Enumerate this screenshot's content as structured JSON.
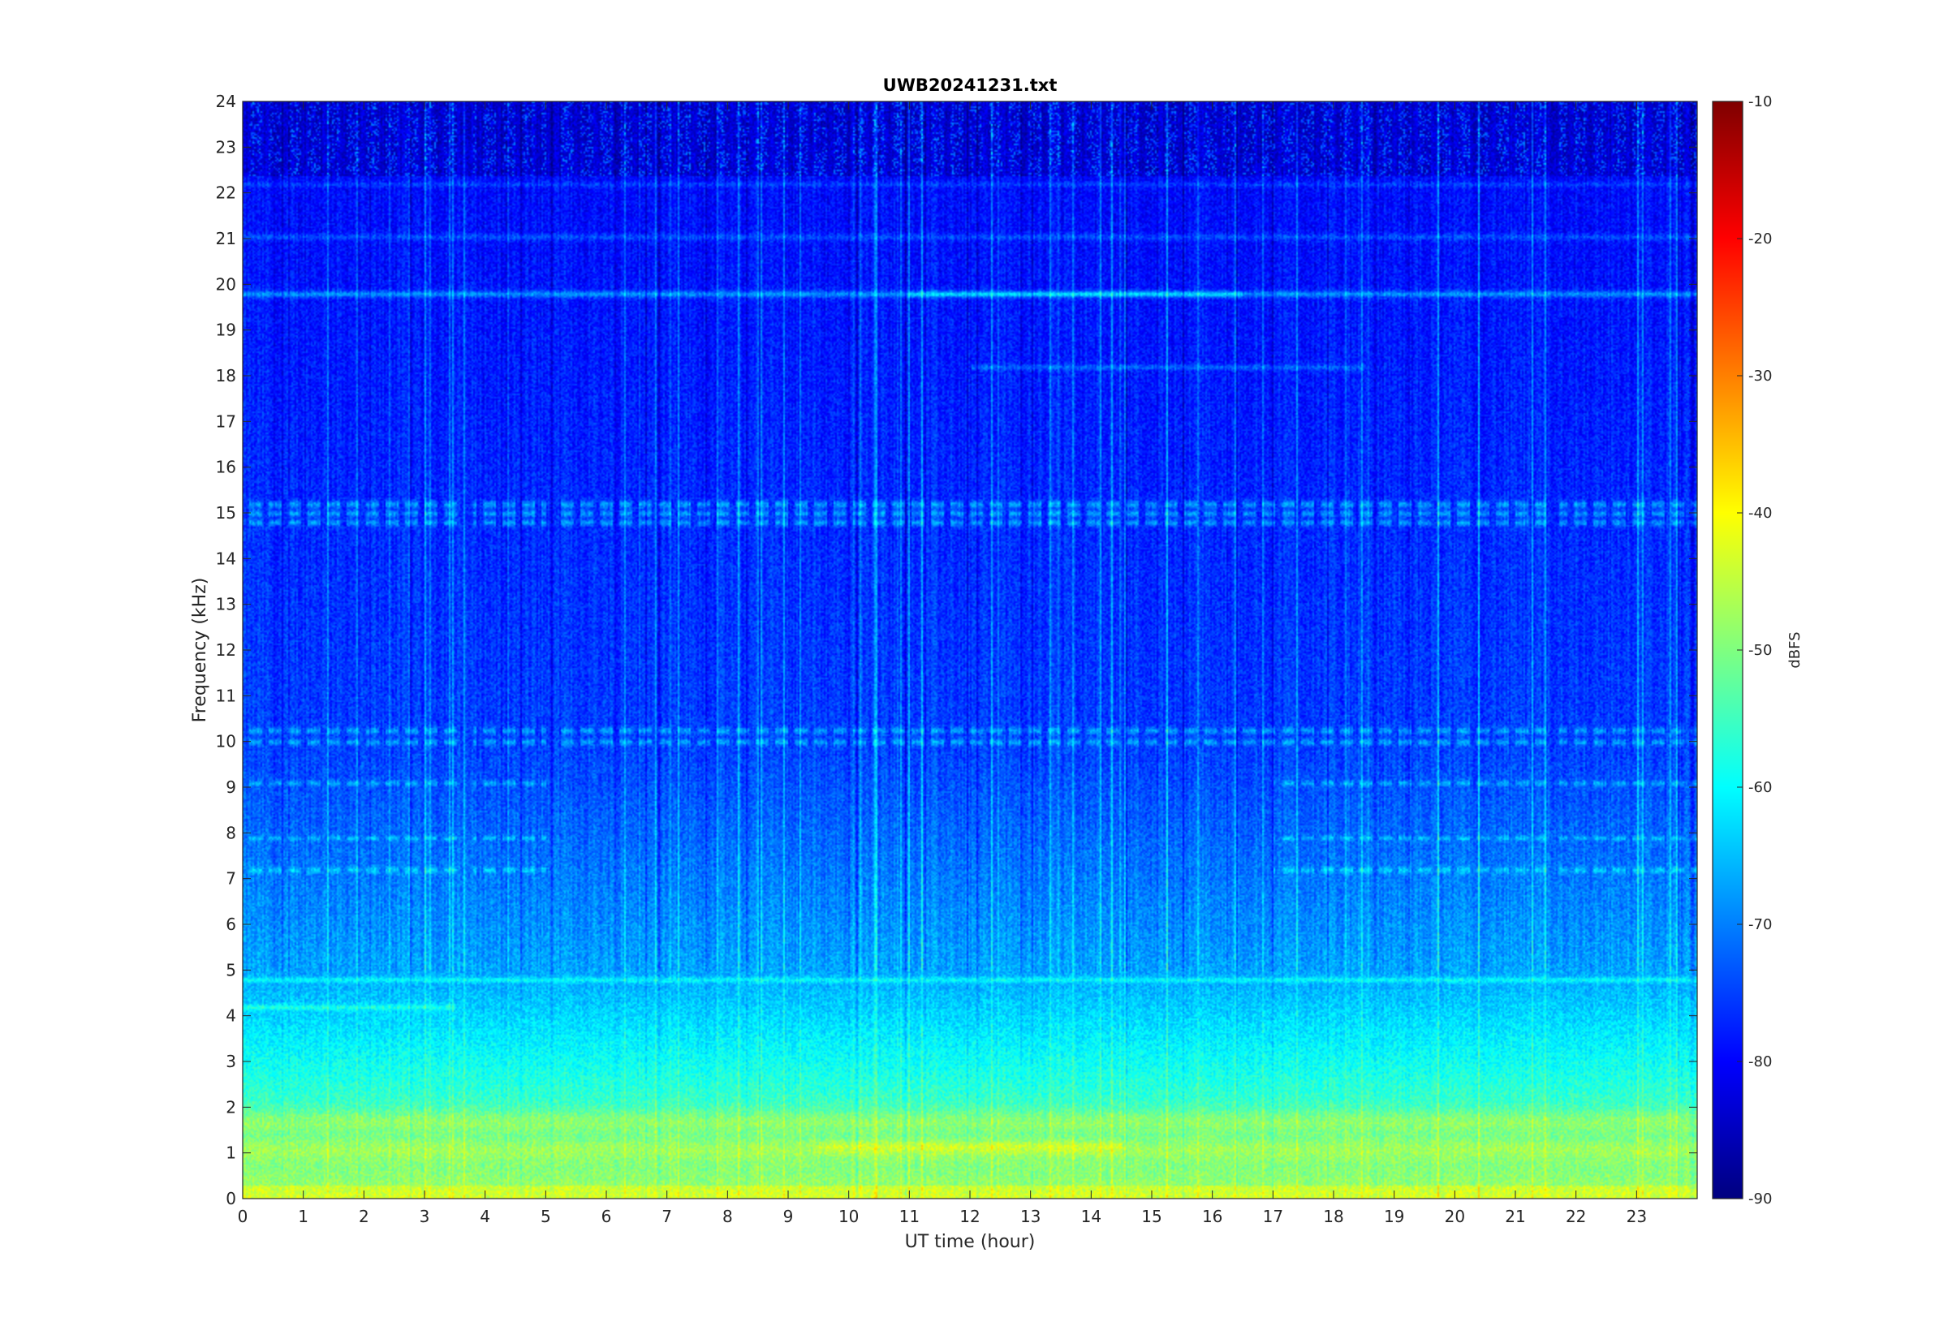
{
  "chart_data": {
    "type": "heatmap",
    "title": "UWB20241231.txt",
    "xlabel": "UT time (hour)",
    "ylabel": "Frequency (kHz)",
    "xlim": [
      0,
      24
    ],
    "ylim": [
      0,
      24
    ],
    "x_ticks": [
      0,
      1,
      2,
      3,
      4,
      5,
      6,
      7,
      8,
      9,
      10,
      11,
      12,
      13,
      14,
      15,
      16,
      17,
      18,
      19,
      20,
      21,
      22,
      23
    ],
    "y_ticks": [
      0,
      1,
      2,
      3,
      4,
      5,
      6,
      7,
      8,
      9,
      10,
      11,
      12,
      13,
      14,
      15,
      16,
      17,
      18,
      19,
      20,
      21,
      22,
      23,
      24
    ],
    "colorbar": {
      "label": "dBFS",
      "range": [
        -90,
        -10
      ],
      "ticks": [
        -10,
        -20,
        -30,
        -40,
        -50,
        -60,
        -70,
        -80,
        -90
      ],
      "colormap": "jet"
    },
    "grid": false,
    "features": {
      "strong_lines_khz": [
        19.8,
        21.05,
        22.2,
        18.2
      ],
      "pulse_bands_khz": [
        15.0,
        10.1,
        8.9,
        7.2,
        4.8,
        4.2
      ],
      "low_band_max_dbfs_khz": [
        1.1,
        1.6,
        1.8
      ],
      "background_dbfs_high_freq": -78,
      "background_dbfs_low_freq": -45
    }
  }
}
